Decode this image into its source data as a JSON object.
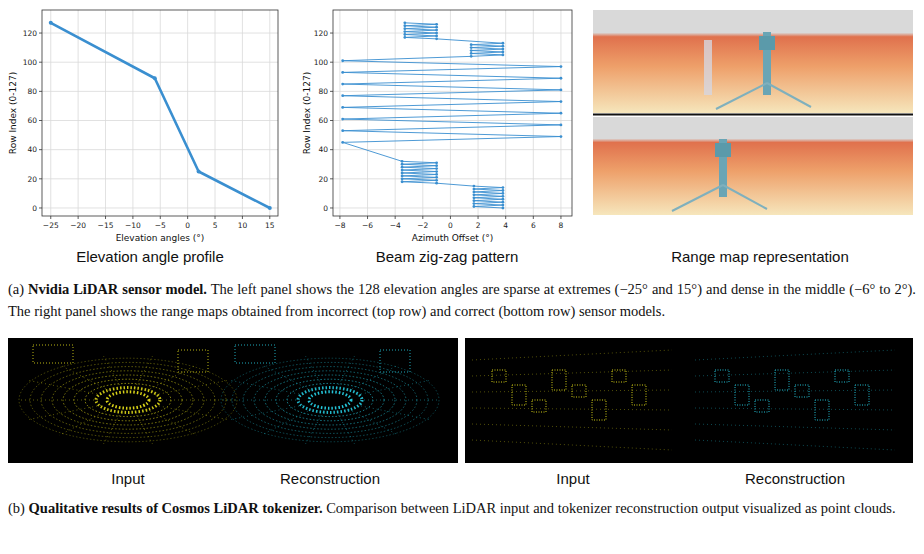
{
  "chart_data": [
    {
      "type": "line",
      "xlabel": "Elevation angles (°)",
      "ylabel": "Row Index (0-127)",
      "x": [
        -25,
        -6,
        2,
        15
      ],
      "values": [
        127,
        89,
        25,
        0
      ],
      "color": "#3a8fd0",
      "marker": "circle",
      "xlim": [
        -26.6,
        16.5
      ],
      "xticks": [
        {
          "value": -25,
          "label": "−25"
        },
        {
          "value": -20,
          "label": "−20"
        },
        {
          "value": -15,
          "label": "−15"
        },
        {
          "value": -10,
          "label": "−10"
        },
        {
          "value": -5,
          "label": "−5"
        },
        0,
        5,
        10,
        15
      ],
      "ylim": [
        -5.5,
        135.8
      ],
      "yticks": [
        0,
        20,
        40,
        60,
        80,
        100,
        120
      ],
      "grid": true
    },
    {
      "type": "line",
      "xlabel": "Azimuth Offset (°)",
      "ylabel": "Row Index (0-127)",
      "x": [
        3.8,
        1.7,
        3.8,
        1.7,
        3.8,
        1.7,
        3.8,
        1.7,
        3.8,
        1.7,
        3.8,
        1.7,
        3.8,
        1.7,
        3.8,
        1.7,
        -1.0,
        -3.5,
        -1.0,
        -3.5,
        -1.0,
        -3.5,
        -1.0,
        -3.5,
        -1.0,
        -3.5,
        -1.0,
        -3.5,
        -1.0,
        -3.5,
        -1.0,
        -3.5,
        -7.8,
        8.0,
        -7.8,
        8.0,
        -7.8,
        8.0,
        -7.8,
        8.0,
        -7.8,
        8.0,
        -7.8,
        8.0,
        -7.8,
        8.0,
        -7.8,
        1.5,
        3.8,
        1.5,
        3.8,
        1.5,
        3.8,
        1.5,
        3.8,
        1.5,
        3.8,
        -1.0,
        -3.3,
        -1.0,
        -3.3,
        -1.0,
        -3.3,
        -1.0,
        -3.3,
        -1.0,
        -3.3,
        -1.0,
        -3.3
      ],
      "values": [
        0,
        1,
        2,
        3,
        4,
        5,
        6,
        7,
        8,
        9,
        10,
        11,
        12,
        13,
        14,
        15,
        17,
        18,
        19,
        20,
        21,
        22,
        23,
        24,
        25,
        26,
        27,
        28,
        29,
        30,
        31,
        32,
        45,
        49,
        53,
        57,
        61,
        65,
        69,
        73,
        77,
        81,
        85,
        89,
        93,
        97,
        101,
        104,
        105,
        106,
        107,
        108,
        109,
        110,
        111,
        112,
        113,
        116,
        117,
        118,
        119,
        120,
        121,
        122,
        123,
        124,
        125,
        126,
        127
      ],
      "color": "#3a8fd0",
      "marker": "circle",
      "xlim": [
        -8.5,
        8.8
      ],
      "xticks": [
        {
          "value": -8,
          "label": "−8"
        },
        {
          "value": -6,
          "label": "−6"
        },
        {
          "value": -4,
          "label": "−4"
        },
        {
          "value": -2,
          "label": "−2"
        },
        0,
        2,
        4,
        6,
        8
      ],
      "ylim": [
        -5.5,
        135.8
      ],
      "yticks": [
        0,
        20,
        40,
        60,
        80,
        100,
        120
      ],
      "grid": true
    }
  ],
  "panel_titles": [
    "Elevation angle profile",
    "Beam zig-zag pattern",
    "Range map representation"
  ],
  "image_labels": [
    "Input",
    "Reconstruction",
    "Input",
    "Reconstruction"
  ],
  "captions": [
    {
      "label": "(a)",
      "title": "Nvidia LiDAR sensor model.",
      "text": "The left panel shows the 128 elevation angles are sparse at extremes (−25° and 15°) and dense in the middle (−6° to 2°). The right panel shows the range maps obtained from incorrect (top row) and correct (bottom row) sensor models."
    },
    {
      "label": "(b)",
      "title": "Qualitative results of Cosmos LiDAR tokenizer.",
      "text": "Comparison between LiDAR input and tokenizer reconstruction output visualized as point clouds."
    }
  ]
}
